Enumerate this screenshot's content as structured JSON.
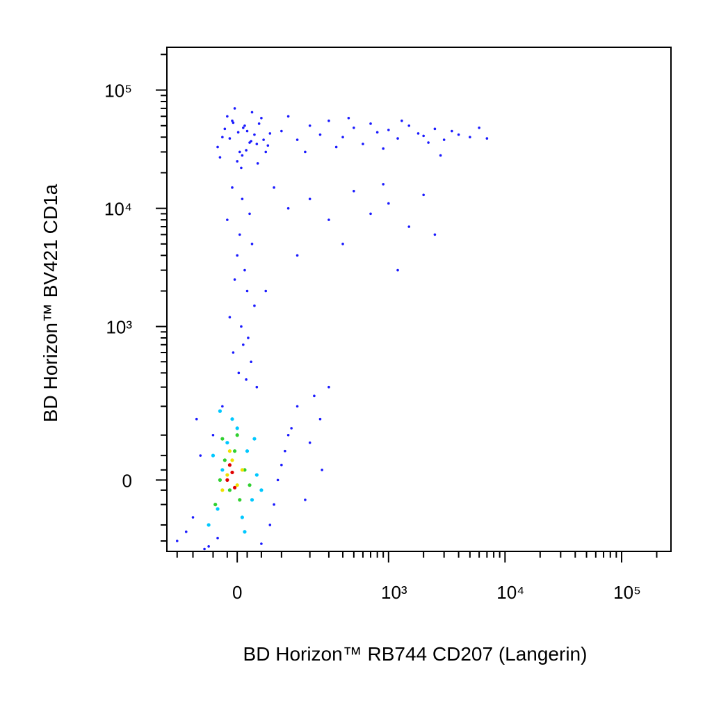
{
  "chart_data": {
    "type": "scatter",
    "xlabel": "BD Horizon™ RB744 CD207 (Langerin)",
    "ylabel": "BD Horizon™ BV421 CD1a",
    "scale": "biexponential",
    "xlim": [
      -190,
      265000
    ],
    "ylim": [
      -190,
      230000
    ],
    "xticks": [
      0,
      {
        "value": 1000,
        "label": "10³"
      },
      {
        "value": 10000,
        "label": "10⁴"
      },
      {
        "value": 100000,
        "label": "10⁵"
      }
    ],
    "yticks": [
      0,
      {
        "value": 1000,
        "label": "10³"
      },
      {
        "value": 10000,
        "label": "10⁴"
      },
      {
        "value": 100000,
        "label": "10⁵"
      }
    ],
    "xminor_ticks": [
      -150,
      -100,
      -50,
      -20,
      20,
      50,
      100,
      200,
      300,
      400,
      500,
      600,
      700,
      800,
      900,
      2000,
      3000,
      4000,
      5000,
      6000,
      7000,
      8000,
      9000,
      20000,
      30000,
      40000,
      50000,
      60000,
      70000,
      80000,
      90000,
      200000
    ],
    "yminor_ticks": [
      -150,
      -100,
      -50,
      -20,
      20,
      50,
      100,
      200,
      300,
      400,
      500,
      600,
      700,
      800,
      900,
      2000,
      3000,
      4000,
      5000,
      6000,
      7000,
      8000,
      9000,
      20000,
      30000,
      40000,
      50000,
      60000,
      70000,
      80000,
      90000,
      200000
    ],
    "series": [
      {
        "color": "#1a1aff",
        "x": [
          -30,
          -10,
          5,
          20,
          40,
          -20,
          0,
          15,
          35,
          55,
          -40,
          -5,
          10,
          25,
          45,
          60,
          -25,
          8,
          30,
          -15,
          2,
          18,
          50,
          70,
          -35,
          12,
          28,
          -8,
          42,
          65,
          100,
          150,
          200,
          250,
          300,
          400,
          500,
          600,
          700,
          800,
          1000,
          1200,
          1500,
          1800,
          2000,
          2500,
          3000,
          3500,
          4000,
          5000,
          6000,
          7000,
          120,
          180,
          350,
          450,
          900,
          1300,
          2200,
          2800,
          -10,
          10,
          25,
          -20,
          5,
          30,
          0,
          15,
          -5,
          20,
          35,
          -15,
          8,
          22,
          12,
          -8,
          28,
          3,
          18,
          40,
          80,
          120,
          200,
          300,
          500,
          700,
          1000,
          1500,
          2000,
          2500,
          150,
          400,
          900,
          1200,
          60,
          -150,
          -120,
          -100,
          -80,
          -60,
          -50,
          -40,
          -30,
          80,
          100,
          120,
          -90,
          50,
          70,
          90,
          110,
          150,
          200,
          250,
          300,
          180,
          220,
          260,
          -70,
          130
        ],
        "y": [
          40000,
          55000,
          30000,
          45000,
          35000,
          60000,
          25000,
          50000,
          42000,
          38000,
          33000,
          70000,
          28000,
          36000,
          52000,
          30000,
          47000,
          22000,
          65000,
          39000,
          44000,
          31000,
          58000,
          43000,
          27000,
          48000,
          37000,
          53000,
          24000,
          34000,
          45000,
          38000,
          50000,
          42000,
          55000,
          40000,
          48000,
          35000,
          52000,
          44000,
          46000,
          39000,
          50000,
          43000,
          41000,
          47000,
          38000,
          45000,
          42000,
          40000,
          48000,
          39000,
          60000,
          30000,
          33000,
          58000,
          32000,
          55000,
          36000,
          28000,
          15000,
          12000,
          9000,
          8000,
          6000,
          5000,
          4000,
          3000,
          2500,
          2000,
          1500,
          1200,
          1000,
          800,
          700,
          600,
          500,
          400,
          350,
          300,
          15000,
          10000,
          12000,
          8000,
          14000,
          9000,
          11000,
          7000,
          13000,
          6000,
          4000,
          5000,
          16000,
          3000,
          2000,
          -150,
          -120,
          -80,
          50,
          -170,
          100,
          -140,
          200,
          -50,
          30,
          100,
          150,
          -160,
          -100,
          0,
          60,
          200,
          80,
          150,
          300,
          -40,
          250,
          20,
          -180,
          120
        ]
      },
      {
        "color": "#00c8ff",
        "x": [
          -60,
          -40,
          -30,
          -20,
          0,
          10,
          20,
          30,
          40,
          -50,
          -10,
          15,
          35,
          50,
          -35
        ],
        "y": [
          -100,
          -60,
          20,
          80,
          120,
          -80,
          60,
          -40,
          10,
          50,
          150,
          -120,
          90,
          -20,
          180
        ]
      },
      {
        "color": "#30d030",
        "x": [
          -45,
          -35,
          -25,
          -15,
          -5,
          5,
          15,
          25,
          -30,
          0
        ],
        "y": [
          -50,
          0,
          40,
          -20,
          60,
          -40,
          20,
          -10,
          90,
          100
        ]
      },
      {
        "color": "#f0e000",
        "x": [
          -30,
          -20,
          -10,
          0,
          10,
          -15
        ],
        "y": [
          -20,
          10,
          40,
          -10,
          20,
          60
        ]
      },
      {
        "color": "#e00000",
        "x": [
          -20,
          -15,
          -10,
          -5
        ],
        "y": [
          0,
          30,
          15,
          -15
        ]
      }
    ]
  }
}
